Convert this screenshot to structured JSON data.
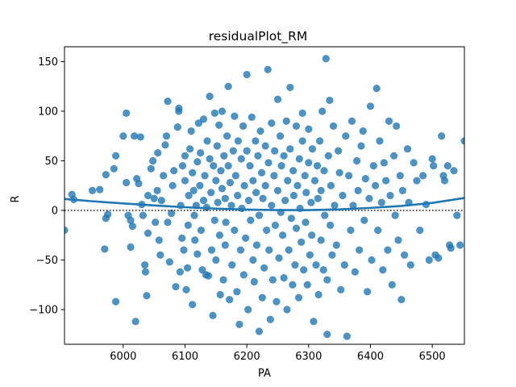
{
  "chart_data": {
    "type": "scatter",
    "title": "residualPlot_RM",
    "xlabel": "PA",
    "ylabel": "R",
    "xlim": [
      5905,
      6552
    ],
    "ylim": [
      -135,
      165
    ],
    "xticks": [
      6000,
      6100,
      6200,
      6300,
      6400,
      6500
    ],
    "yticks": [
      -100,
      -50,
      0,
      50,
      100,
      150
    ],
    "grid": false,
    "reference_line": {
      "y": 0,
      "style": "dotted"
    },
    "colors": {
      "points": "#1f77b4",
      "fit": "#1f77b4",
      "reference": "#000000"
    },
    "fit_curve": [
      [
        5905,
        11.5
      ],
      [
        5950,
        9.2
      ],
      [
        6000,
        7
      ],
      [
        6050,
        5
      ],
      [
        6100,
        3.2
      ],
      [
        6150,
        1.8
      ],
      [
        6200,
        0.8
      ],
      [
        6250,
        0.3
      ],
      [
        6300,
        0.3
      ],
      [
        6350,
        1
      ],
      [
        6400,
        2.5
      ],
      [
        6450,
        4.5
      ],
      [
        6500,
        7.5
      ],
      [
        6552,
        12.5
      ]
    ],
    "points": [
      [
        5905,
        -20
      ],
      [
        5917,
        16
      ],
      [
        5920,
        11
      ],
      [
        5950,
        20
      ],
      [
        5962,
        21
      ],
      [
        5972,
        36
      ],
      [
        5975,
        -4
      ],
      [
        5970,
        -39
      ],
      [
        5972,
        -8
      ],
      [
        5985,
        42
      ],
      [
        5988,
        -92
      ],
      [
        5988,
        55
      ],
      [
        6000,
        75
      ],
      [
        6005,
        98
      ],
      [
        6005,
        28
      ],
      [
        6008,
        -5
      ],
      [
        6012,
        -10
      ],
      [
        6012,
        -37
      ],
      [
        6015,
        -16
      ],
      [
        6018,
        75
      ],
      [
        6020,
        -112
      ],
      [
        6022,
        32
      ],
      [
        6025,
        27
      ],
      [
        6028,
        74
      ],
      [
        6030,
        6
      ],
      [
        6032,
        -5
      ],
      [
        6035,
        -55
      ],
      [
        6036,
        -62
      ],
      [
        6038,
        -86
      ],
      [
        6040,
        15
      ],
      [
        6040,
        -23
      ],
      [
        6045,
        42
      ],
      [
        6048,
        50
      ],
      [
        6050,
        12
      ],
      [
        6052,
        -12
      ],
      [
        6055,
        20
      ],
      [
        6056,
        58
      ],
      [
        6058,
        -30
      ],
      [
        6060,
        -45
      ],
      [
        6062,
        10
      ],
      [
        6065,
        35
      ],
      [
        6068,
        66
      ],
      [
        6070,
        75
      ],
      [
        6072,
        -12
      ],
      [
        6072,
        110
      ],
      [
        6075,
        -52
      ],
      [
        6078,
        -3
      ],
      [
        6080,
        25
      ],
      [
        6082,
        40
      ],
      [
        6085,
        -77
      ],
      [
        6088,
        84
      ],
      [
        6090,
        103
      ],
      [
        6090,
        100
      ],
      [
        6092,
        -62
      ],
      [
        6093,
        5
      ],
      [
        6095,
        -28
      ],
      [
        6096,
        45
      ],
      [
        6098,
        -40
      ],
      [
        6100,
        30
      ],
      [
        6100,
        55
      ],
      [
        6102,
        -80
      ],
      [
        6104,
        -58
      ],
      [
        6105,
        -15
      ],
      [
        6106,
        15
      ],
      [
        6108,
        62
      ],
      [
        6110,
        80
      ],
      [
        6112,
        -95
      ],
      [
        6112,
        38
      ],
      [
        6114,
        20
      ],
      [
        6115,
        -5
      ],
      [
        6116,
        -30
      ],
      [
        6118,
        5
      ],
      [
        6120,
        49
      ],
      [
        6120,
        -44
      ],
      [
        6122,
        88
      ],
      [
        6124,
        25
      ],
      [
        6125,
        58
      ],
      [
        6126,
        -20
      ],
      [
        6128,
        -60
      ],
      [
        6130,
        92
      ],
      [
        6130,
        10
      ],
      [
        6132,
        35
      ],
      [
        6134,
        -65
      ],
      [
        6135,
        3
      ],
      [
        6136,
        70
      ],
      [
        6138,
        -66
      ],
      [
        6140,
        115
      ],
      [
        6140,
        52
      ],
      [
        6142,
        18
      ],
      [
        6143,
        -40
      ],
      [
        6145,
        -106
      ],
      [
        6146,
        45
      ],
      [
        6148,
        98
      ],
      [
        6148,
        -10
      ],
      [
        6150,
        30
      ],
      [
        6150,
        -50
      ],
      [
        6152,
        65
      ],
      [
        6153,
        8
      ],
      [
        6155,
        86
      ],
      [
        6156,
        -25
      ],
      [
        6157,
        -85
      ],
      [
        6158,
        40
      ],
      [
        6160,
        100
      ],
      [
        6160,
        22
      ],
      [
        6162,
        -70
      ],
      [
        6163,
        55
      ],
      [
        6165,
        12
      ],
      [
        6165,
        -35
      ],
      [
        6166,
        -12
      ],
      [
        6168,
        75
      ],
      [
        6170,
        125
      ],
      [
        6170,
        45
      ],
      [
        6172,
        -90
      ],
      [
        6173,
        28
      ],
      [
        6175,
        5
      ],
      [
        6176,
        -55
      ],
      [
        6178,
        60
      ],
      [
        6180,
        95
      ],
      [
        6180,
        -20
      ],
      [
        6182,
        35
      ],
      [
        6184,
        -82
      ],
      [
        6185,
        15
      ],
      [
        6186,
        70
      ],
      [
        6188,
        -115
      ],
      [
        6190,
        -40
      ],
      [
        6191,
        52
      ],
      [
        6192,
        2
      ],
      [
        6194,
        85
      ],
      [
        6195,
        -65
      ],
      [
        6196,
        25
      ],
      [
        6198,
        -28
      ],
      [
        6200,
        137
      ],
      [
        6200,
        60
      ],
      [
        6202,
        -100
      ],
      [
        6203,
        10
      ],
      [
        6205,
        45
      ],
      [
        6206,
        -10
      ],
      [
        6208,
        94
      ],
      [
        6210,
        -50
      ],
      [
        6210,
        30
      ],
      [
        6212,
        -72
      ],
      [
        6214,
        70
      ],
      [
        6215,
        18
      ],
      [
        6216,
        -35
      ],
      [
        6218,
        55
      ],
      [
        6220,
        -122
      ],
      [
        6220,
        -5
      ],
      [
        6222,
        80
      ],
      [
        6224,
        38
      ],
      [
        6225,
        -88
      ],
      [
        6226,
        12
      ],
      [
        6228,
        -58
      ],
      [
        6230,
        65
      ],
      [
        6230,
        25
      ],
      [
        6232,
        -20
      ],
      [
        6234,
        142
      ],
      [
        6235,
        48
      ],
      [
        6236,
        -40
      ],
      [
        6238,
        -110
      ],
      [
        6240,
        88
      ],
      [
        6240,
        5
      ],
      [
        6242,
        -70
      ],
      [
        6244,
        35
      ],
      [
        6245,
        60
      ],
      [
        6246,
        -15
      ],
      [
        6248,
        -92
      ],
      [
        6250,
        20
      ],
      [
        6250,
        112
      ],
      [
        6252,
        -48
      ],
      [
        6254,
        75
      ],
      [
        6255,
        -2
      ],
      [
        6256,
        45
      ],
      [
        6258,
        -25
      ],
      [
        6260,
        55
      ],
      [
        6260,
        -68
      ],
      [
        6262,
        10
      ],
      [
        6264,
        90
      ],
      [
        6265,
        -100
      ],
      [
        6266,
        30
      ],
      [
        6268,
        -40
      ],
      [
        6270,
        124
      ],
      [
        6270,
        62
      ],
      [
        6272,
        -8
      ],
      [
        6274,
        -75
      ],
      [
        6275,
        40
      ],
      [
        6276,
        15
      ],
      [
        6278,
        -55
      ],
      [
        6280,
        85
      ],
      [
        6280,
        -18
      ],
      [
        6282,
        25
      ],
      [
        6284,
        -88
      ],
      [
        6285,
        52
      ],
      [
        6286,
        2
      ],
      [
        6288,
        -32
      ],
      [
        6290,
        70
      ],
      [
        6290,
        98
      ],
      [
        6292,
        -60
      ],
      [
        6294,
        35
      ],
      [
        6295,
        -12
      ],
      [
        6296,
        18
      ],
      [
        6298,
        -75
      ],
      [
        6300,
        82
      ],
      [
        6300,
        48
      ],
      [
        6302,
        -45
      ],
      [
        6304,
        8
      ],
      [
        6305,
        -25
      ],
      [
        6306,
        62
      ],
      [
        6308,
        -112
      ],
      [
        6310,
        30
      ],
      [
        6312,
        -55
      ],
      [
        6314,
        45
      ],
      [
        6315,
        12
      ],
      [
        6316,
        -85
      ],
      [
        6318,
        70
      ],
      [
        6320,
        -30
      ],
      [
        6320,
        20
      ],
      [
        6322,
        100
      ],
      [
        6324,
        -60
      ],
      [
        6325,
        40
      ],
      [
        6326,
        -5
      ],
      [
        6328,
        153
      ],
      [
        6330,
        -125
      ],
      [
        6330,
        -70
      ],
      [
        6332,
        55
      ],
      [
        6334,
        111
      ],
      [
        6335,
        -15
      ],
      [
        6336,
        25
      ],
      [
        6338,
        -45
      ],
      [
        6340,
        85
      ],
      [
        6342,
        5
      ],
      [
        6345,
        -35
      ],
      [
        6348,
        60
      ],
      [
        6350,
        38
      ],
      [
        6352,
        -80
      ],
      [
        6355,
        15
      ],
      [
        6358,
        -55
      ],
      [
        6360,
        75
      ],
      [
        6362,
        -127
      ],
      [
        6365,
        35
      ],
      [
        6368,
        -20
      ],
      [
        6370,
        90
      ],
      [
        6372,
        5
      ],
      [
        6375,
        -62
      ],
      [
        6378,
        50
      ],
      [
        6380,
        20
      ],
      [
        6382,
        -40
      ],
      [
        6385,
        65
      ],
      [
        6388,
        80
      ],
      [
        6390,
        -10
      ],
      [
        6392,
        32
      ],
      [
        6395,
        -82
      ],
      [
        6398,
        12
      ],
      [
        6400,
        105
      ],
      [
        6402,
        -50
      ],
      [
        6405,
        45
      ],
      [
        6408,
        25
      ],
      [
        6410,
        123
      ],
      [
        6412,
        -20
      ],
      [
        6415,
        70
      ],
      [
        6418,
        8
      ],
      [
        6420,
        -60
      ],
      [
        6422,
        48
      ],
      [
        6425,
        30
      ],
      [
        6428,
        -40
      ],
      [
        6430,
        90
      ],
      [
        6432,
        15
      ],
      [
        6435,
        -75
      ],
      [
        6438,
        55
      ],
      [
        6440,
        -5
      ],
      [
        6442,
        85
      ],
      [
        6445,
        -30
      ],
      [
        6448,
        35
      ],
      [
        6450,
        -90
      ],
      [
        6452,
        20
      ],
      [
        6455,
        -45
      ],
      [
        6460,
        62
      ],
      [
        6462,
        8
      ],
      [
        6465,
        -55
      ],
      [
        6470,
        48
      ],
      [
        6475,
        30
      ],
      [
        6480,
        -20
      ],
      [
        6485,
        35
      ],
      [
        6490,
        6
      ],
      [
        6495,
        -50
      ],
      [
        6500,
        52
      ],
      [
        6502,
        45
      ],
      [
        6505,
        -45
      ],
      [
        6510,
        -48
      ],
      [
        6515,
        75
      ],
      [
        6518,
        35
      ],
      [
        6520,
        30
      ],
      [
        6525,
        45
      ],
      [
        6528,
        -35
      ],
      [
        6530,
        -38
      ],
      [
        6535,
        40
      ],
      [
        6540,
        -5
      ],
      [
        6545,
        -35
      ],
      [
        6552,
        70
      ]
    ]
  }
}
